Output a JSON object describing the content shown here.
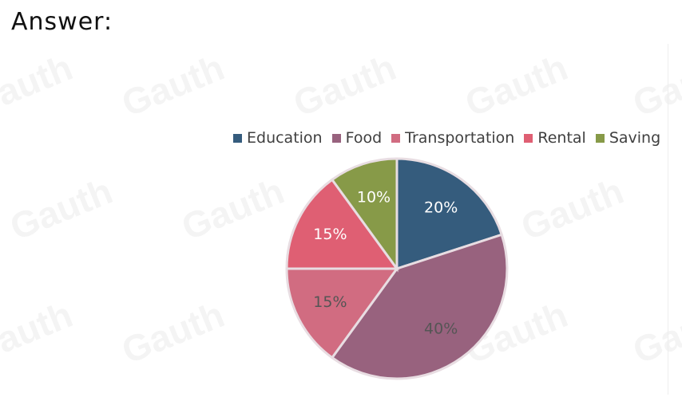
{
  "header": {
    "title": "Answer:"
  },
  "watermark": "Gauth",
  "chart_data": {
    "type": "pie",
    "categories": [
      "Education",
      "Food",
      "Transportation",
      "Rental",
      "Saving"
    ],
    "values": [
      20,
      40,
      15,
      15,
      10
    ],
    "value_labels": [
      "20%",
      "40%",
      "15%",
      "15%",
      "10%"
    ],
    "colors": [
      "#355c7d",
      "#98627e",
      "#d16c81",
      "#df5f73",
      "#879a48"
    ],
    "label_colors": [
      "#ffffff",
      "#555555",
      "#555555",
      "#ffffff",
      "#ffffff"
    ],
    "start_angle_deg": 0,
    "direction": "clockwise",
    "legend_position": "top"
  }
}
